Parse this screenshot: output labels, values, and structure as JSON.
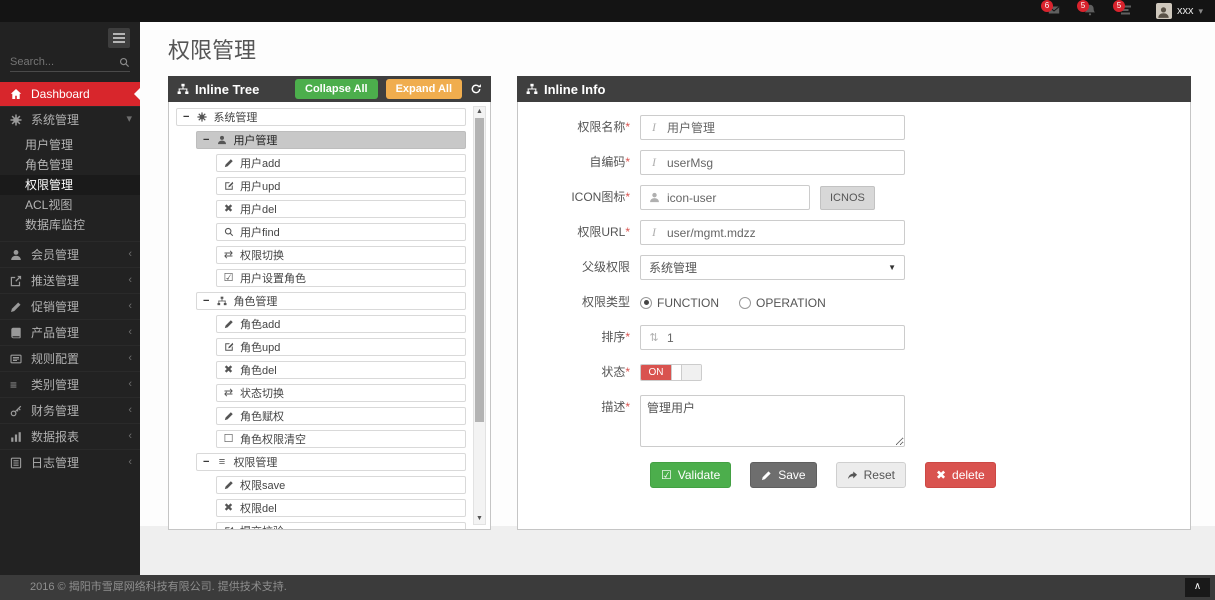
{
  "navbar": {
    "username": "xxx",
    "notifications": [
      {
        "icon": "envelope-icon",
        "count": "6"
      },
      {
        "icon": "bell-icon",
        "count": "5"
      },
      {
        "icon": "tasks-icon",
        "count": "5"
      }
    ]
  },
  "sidebar": {
    "search_placeholder": "Search...",
    "items": [
      {
        "key": "dashboard",
        "label": "Dashboard",
        "icon": "home-icon",
        "active": true
      },
      {
        "key": "system",
        "label": "系统管理",
        "icon": "cogs-icon",
        "expanded": true,
        "children": [
          {
            "label": "用户管理"
          },
          {
            "label": "角色管理"
          },
          {
            "label": "权限管理",
            "active": true
          },
          {
            "label": "ACL视图"
          },
          {
            "label": "数据库监控"
          }
        ]
      },
      {
        "key": "members",
        "label": "会员管理",
        "icon": "user-icon"
      },
      {
        "key": "push",
        "label": "推送管理",
        "icon": "share-icon"
      },
      {
        "key": "promotion",
        "label": "促销管理",
        "icon": "pencil-icon"
      },
      {
        "key": "products",
        "label": "产品管理",
        "icon": "book-icon"
      },
      {
        "key": "rules",
        "label": "规则配置",
        "icon": "newspaper-icon"
      },
      {
        "key": "categories",
        "label": "类别管理",
        "icon": "list-icon"
      },
      {
        "key": "finance",
        "label": "财务管理",
        "icon": "key-icon"
      },
      {
        "key": "reports",
        "label": "数据报表",
        "icon": "chart-icon"
      },
      {
        "key": "logs",
        "label": "日志管理",
        "icon": "file-list-icon"
      }
    ]
  },
  "page": {
    "title": "权限管理"
  },
  "tree_panel": {
    "title": "Inline Tree",
    "collapse_all": "Collapse All",
    "expand_all": "Expand All",
    "nodes": [
      {
        "level": 0,
        "parent": true,
        "icon": "cogs-icon",
        "label": "系统管理"
      },
      {
        "level": 1,
        "parent": true,
        "icon": "user-icon",
        "label": "用户管理",
        "active": true
      },
      {
        "level": 2,
        "icon": "pencil-icon",
        "label": "用户add"
      },
      {
        "level": 2,
        "icon": "edit-icon",
        "label": "用户upd"
      },
      {
        "level": 2,
        "icon": "close-icon",
        "label": "用户del"
      },
      {
        "level": 2,
        "icon": "search-icon",
        "label": "用户find"
      },
      {
        "level": 2,
        "icon": "retweet-icon",
        "label": "权限切换"
      },
      {
        "level": 2,
        "icon": "check-square-icon",
        "label": "用户设置角色"
      },
      {
        "level": 1,
        "parent": true,
        "icon": "sitemap-icon",
        "label": "角色管理"
      },
      {
        "level": 2,
        "icon": "pencil-icon",
        "label": "角色add"
      },
      {
        "level": 2,
        "icon": "edit-icon",
        "label": "角色upd"
      },
      {
        "level": 2,
        "icon": "close-icon",
        "label": "角色del"
      },
      {
        "level": 2,
        "icon": "retweet-icon",
        "label": "状态切换"
      },
      {
        "level": 2,
        "icon": "pencil-icon",
        "label": "角色赋权"
      },
      {
        "level": 2,
        "icon": "square-icon",
        "label": "角色权限清空"
      },
      {
        "level": 1,
        "parent": true,
        "icon": "list-icon",
        "label": "权限管理"
      },
      {
        "level": 2,
        "icon": "pencil-icon",
        "label": "权限save"
      },
      {
        "level": 2,
        "icon": "close-icon",
        "label": "权限del"
      },
      {
        "level": 2,
        "icon": "edit-icon",
        "label": "提交校验"
      }
    ]
  },
  "info_panel": {
    "title": "Inline Info",
    "fields": [
      {
        "key": "perm-name",
        "label": "权限名称",
        "required": true,
        "type": "input",
        "addon": "italic-icon",
        "value": "用户管理"
      },
      {
        "key": "perm-code",
        "label": "自编码",
        "required": true,
        "type": "input",
        "addon": "italic-icon",
        "value": "userMsg"
      },
      {
        "key": "perm-icon",
        "label": "ICON图标",
        "required": true,
        "type": "input-button",
        "addon": "user-icon",
        "value": "icon-user",
        "button": "ICNOS"
      },
      {
        "key": "perm-url",
        "label": "权限URL",
        "required": true,
        "type": "input",
        "addon": "italic-icon",
        "value": "user/mgmt.mdzz"
      },
      {
        "key": "perm-parent",
        "label": "父级权限",
        "required": false,
        "type": "select",
        "value": "系统管理"
      },
      {
        "key": "perm-type",
        "label": "权限类型",
        "required": false,
        "type": "radio",
        "options": [
          {
            "label": "FUNCTION",
            "checked": true
          },
          {
            "label": "OPERATION",
            "checked": false
          }
        ]
      },
      {
        "key": "perm-sort",
        "label": "排序",
        "required": true,
        "type": "input",
        "addon": "sort-icon",
        "value": "1"
      },
      {
        "key": "perm-status",
        "label": "状态",
        "required": true,
        "type": "toggle",
        "value": "ON"
      },
      {
        "key": "perm-desc",
        "label": "描述",
        "required": true,
        "type": "textarea",
        "value": "管理用户"
      }
    ],
    "buttons": [
      {
        "key": "validate",
        "label": "Validate",
        "icon": "check-square-icon",
        "style": "success"
      },
      {
        "key": "save",
        "label": "Save",
        "icon": "pencil-icon",
        "style": "dark"
      },
      {
        "key": "reset",
        "label": "Reset",
        "icon": "forward-icon",
        "style": "default"
      },
      {
        "key": "delete",
        "label": "delete",
        "icon": "close-icon",
        "style": "danger"
      }
    ]
  },
  "footer": {
    "copyright": "2016 © 揭阳市雪犀网络科技有限公司. 提供技术支持."
  },
  "colors": {
    "accent_red": "#d8262c",
    "badge_red": "#d9232d",
    "success_green": "#4cae4c",
    "warning_orange": "#f0ad4e",
    "danger_red": "#d9534f",
    "panel_header": "#3f3f3f",
    "sidebar_bg": "#222222",
    "navbar_bg": "#141414"
  }
}
